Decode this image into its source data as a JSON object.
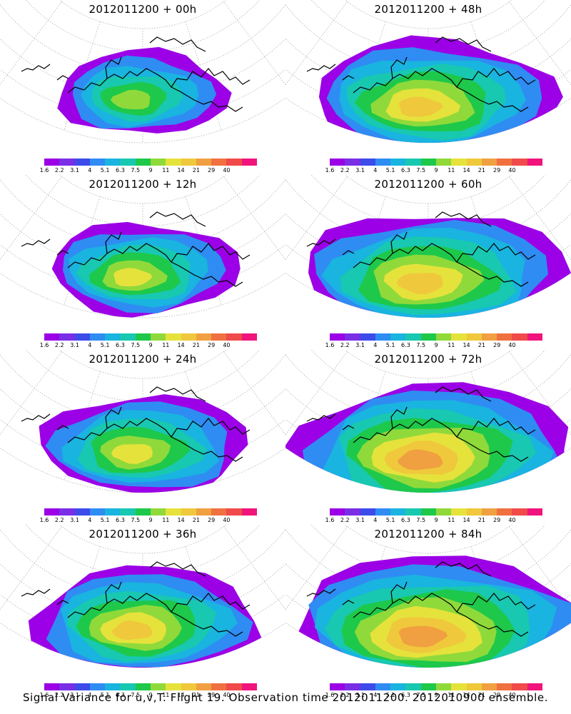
{
  "panels": [
    {
      "title": "2012011200 + 00h",
      "lead_hours": 0
    },
    {
      "title": "2012011200 + 48h",
      "lead_hours": 48
    },
    {
      "title": "2012011200 + 12h",
      "lead_hours": 12
    },
    {
      "title": "2012011200 + 60h",
      "lead_hours": 60
    },
    {
      "title": "2012011200 + 24h",
      "lead_hours": 24
    },
    {
      "title": "2012011200 + 72h",
      "lead_hours": 72
    },
    {
      "title": "2012011200 + 36h",
      "lead_hours": 36
    },
    {
      "title": "2012011200 + 84h",
      "lead_hours": 84
    }
  ],
  "colorbar": {
    "labels": [
      "1.6",
      "2.2",
      "3.1",
      "4",
      "5.1",
      "6.3",
      "7.5",
      "9",
      "11",
      "14",
      "21",
      "29",
      "40"
    ],
    "colors": [
      "#9b00e6",
      "#7a2ee6",
      "#3c4bea",
      "#2f8cf2",
      "#19b4e0",
      "#18c8b0",
      "#1ec84a",
      "#8fda3a",
      "#e6e23c",
      "#f0c83c",
      "#f0a040",
      "#f07040",
      "#f04a4a",
      "#f0147c"
    ]
  },
  "caption": "Signal Variance for u,v,T. Flight 19. Observation time 2012011200. 2012010900 ensemble."
}
